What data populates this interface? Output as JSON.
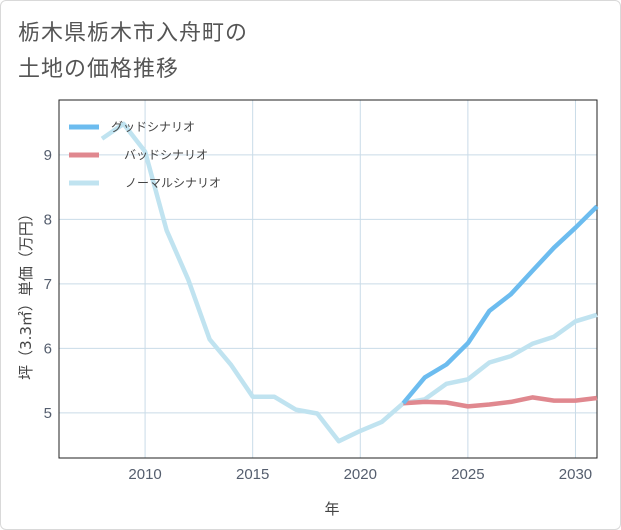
{
  "title_lines": [
    "栃木県栃木市入舟町の",
    "土地の価格推移"
  ],
  "chart_data": {
    "type": "line",
    "title": "栃木県栃木市入舟町の土地の価格推移",
    "xlabel": "年",
    "ylabel": "坪（3.3㎡）単価（万円）",
    "xlim": [
      2006,
      2031
    ],
    "ylim": [
      4.3,
      9.85
    ],
    "xticks": [
      2010,
      2015,
      2020,
      2025,
      2030
    ],
    "yticks": [
      5,
      6,
      7,
      8,
      9
    ],
    "grid": true,
    "legend_position": "top-left",
    "series": [
      {
        "name": "グッドシナリオ",
        "color": "#6cbcef",
        "x": [
          2022,
          2023,
          2024,
          2025,
          2026,
          2027,
          2028,
          2029,
          2030,
          2031
        ],
        "y": [
          5.15,
          5.55,
          5.75,
          6.08,
          6.58,
          6.84,
          7.2,
          7.56,
          7.87,
          8.2
        ]
      },
      {
        "name": "バッドシナリオ",
        "color": "#e0888f",
        "x": [
          2022,
          2023,
          2024,
          2025,
          2026,
          2027,
          2028,
          2029,
          2030,
          2031
        ],
        "y": [
          5.15,
          5.17,
          5.16,
          5.1,
          5.13,
          5.17,
          5.24,
          5.19,
          5.19,
          5.23
        ]
      },
      {
        "name": "ノーマルシナリオ",
        "color": "#c0e3f0",
        "x": [
          2008,
          2009,
          2010,
          2011,
          2012,
          2013,
          2014,
          2015,
          2016,
          2017,
          2018,
          2019,
          2020,
          2021,
          2022,
          2023,
          2024,
          2025,
          2026,
          2027,
          2028,
          2029,
          2030,
          2031
        ],
        "y": [
          9.25,
          9.48,
          9.05,
          7.83,
          7.07,
          6.14,
          5.74,
          5.25,
          5.25,
          5.05,
          4.99,
          4.56,
          4.72,
          4.86,
          5.15,
          5.21,
          5.45,
          5.52,
          5.78,
          5.88,
          6.07,
          6.18,
          6.42,
          6.52
        ]
      }
    ]
  }
}
